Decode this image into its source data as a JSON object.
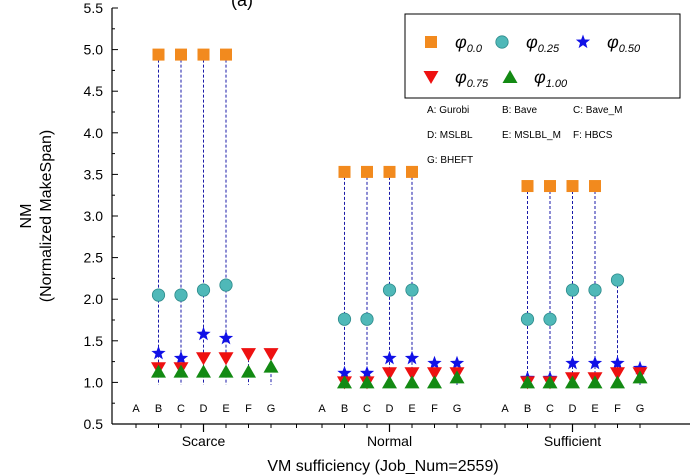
{
  "chart_data": {
    "type": "scatter",
    "title": "(a)",
    "xlabel": "VM sufficiency (Job_Num=2559)",
    "ylabel_lines": [
      "NM",
      "(Normalized MakeSpan)"
    ],
    "ylim": [
      0.5,
      5.5
    ],
    "yticks": [
      "0.5",
      "1.0",
      "1.5",
      "2.0",
      "2.5",
      "3.0",
      "3.5",
      "4.0",
      "4.5",
      "5.0",
      "5.5"
    ],
    "groups": [
      "Scarce",
      "Normal",
      "Sufficient"
    ],
    "algorithms": [
      "A",
      "B",
      "C",
      "D",
      "E",
      "F",
      "G"
    ],
    "legend_position": "top-right",
    "legend_key": [
      {
        "code": "A",
        "name": "Gurobi"
      },
      {
        "code": "B",
        "name": "Bave"
      },
      {
        "code": "C",
        "name": "Bave_M"
      },
      {
        "code": "D",
        "name": "MSLBL"
      },
      {
        "code": "E",
        "name": "MSLBL_M"
      },
      {
        "code": "F",
        "name": "HBCS"
      },
      {
        "code": "G",
        "name": "BHEFT"
      }
    ],
    "series": [
      {
        "symbol": "φ",
        "sub": "0.0",
        "marker": "square",
        "color": "#f28a1e",
        "values": [
          [
            null,
            4.94,
            4.94,
            4.94,
            4.94,
            null,
            null
          ],
          [
            null,
            3.53,
            3.53,
            3.53,
            3.53,
            null,
            null
          ],
          [
            null,
            3.36,
            3.36,
            3.36,
            3.36,
            null,
            null
          ]
        ]
      },
      {
        "symbol": "φ",
        "sub": "0.25",
        "marker": "circle",
        "color": "#4fb8b8",
        "values": [
          [
            null,
            2.05,
            2.05,
            2.11,
            2.17,
            null,
            null
          ],
          [
            null,
            1.76,
            1.76,
            2.11,
            2.11,
            null,
            null
          ],
          [
            null,
            1.76,
            1.76,
            2.11,
            2.11,
            2.23,
            null
          ]
        ]
      },
      {
        "symbol": "φ",
        "sub": "0.50",
        "marker": "star",
        "color": "#1010e6",
        "values": [
          [
            null,
            1.35,
            1.29,
            1.58,
            1.53,
            null,
            null
          ],
          [
            null,
            1.11,
            1.11,
            1.29,
            1.29,
            1.23,
            1.23
          ],
          [
            null,
            1.05,
            1.05,
            1.23,
            1.23,
            1.23,
            1.17
          ]
        ]
      },
      {
        "symbol": "φ",
        "sub": "0.75",
        "marker": "triangle-down",
        "color": "#ee1111",
        "values": [
          [
            null,
            1.17,
            1.17,
            1.29,
            1.29,
            1.34,
            1.34
          ],
          [
            null,
            1.0,
            1.0,
            1.11,
            1.11,
            1.11,
            1.11
          ],
          [
            null,
            1.0,
            1.0,
            1.05,
            1.05,
            1.11,
            1.11
          ]
        ]
      },
      {
        "symbol": "φ",
        "sub": "1.00",
        "marker": "triangle-up",
        "color": "#138a13",
        "values": [
          [
            null,
            1.13,
            1.13,
            1.13,
            1.13,
            1.13,
            1.19
          ],
          [
            null,
            1.0,
            1.0,
            1.0,
            1.0,
            1.0,
            1.06
          ],
          [
            null,
            1.0,
            1.0,
            1.0,
            1.0,
            1.0,
            1.06
          ]
        ]
      }
    ]
  }
}
